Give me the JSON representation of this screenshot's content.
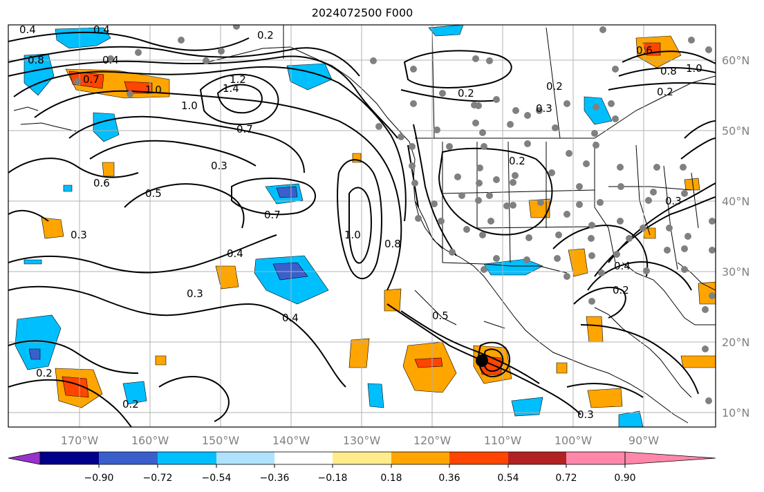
{
  "title": "2024072500 F000",
  "map": {
    "lon_labels": [
      "170°W",
      "160°W",
      "150°W",
      "140°W",
      "130°W",
      "120°W",
      "110°W",
      "100°W",
      "90°W"
    ],
    "lat_labels": [
      "60°N",
      "50°N",
      "40°N",
      "30°N",
      "20°N",
      "10°N"
    ],
    "contour_labels": [
      "0.4",
      "0.4",
      "0.2",
      "0.8",
      "0.7",
      "1.0",
      "1.2",
      "1.4",
      "1.0",
      "0.7",
      "0.3",
      "0.6",
      "0.5",
      "0.7",
      "0.4",
      "0.3",
      "1.0",
      "0.8",
      "0.4",
      "0.2",
      "0.5",
      "0.2",
      "0.2",
      "0.2",
      "0.3",
      "0.6",
      "0.8",
      "1.0",
      "0.3",
      "0.4",
      "0.2",
      "0.3",
      "0.2",
      "0.3",
      "0.4",
      "0.2"
    ],
    "colors": {
      "ocean": "#ffffff",
      "contour": "#000000",
      "station_dot": "#808080",
      "grid": "#b0b0b0"
    }
  },
  "colorbar": {
    "ticks": [
      "−0.90",
      "−0.72",
      "−0.54",
      "−0.36",
      "−0.18",
      "0.18",
      "0.36",
      "0.54",
      "0.72",
      "0.90"
    ],
    "colors": [
      "#9932cc",
      "#00008b",
      "#3a5fcd",
      "#00bfff",
      "#b0e2ff",
      "#ffffff",
      "#ffec8b",
      "#ffa500",
      "#ff4500",
      "#b22222",
      "#ff88aa"
    ]
  }
}
